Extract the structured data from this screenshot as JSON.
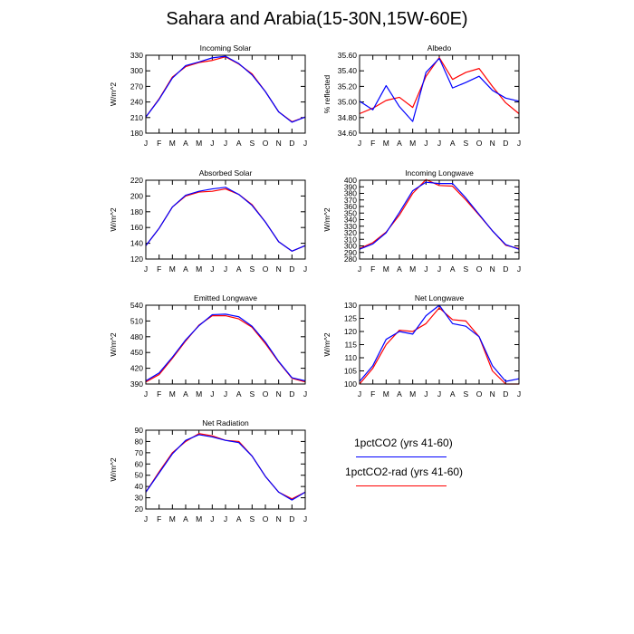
{
  "title": "Sahara and Arabia(15-30N,15W-60E)",
  "month_labels": [
    "J",
    "F",
    "M",
    "A",
    "M",
    "J",
    "J",
    "A",
    "S",
    "O",
    "N",
    "D",
    "J"
  ],
  "colors": {
    "blue": "#0000ff",
    "red": "#ff0000"
  },
  "legend": [
    {
      "label": "1pctCO2 (yrs 41-60)",
      "color": "#0000ff"
    },
    {
      "label": "1pctCO2-rad (yrs 41-60)",
      "color": "#ff0000"
    }
  ],
  "chart_data": [
    {
      "type": "line",
      "title": "Incoming Solar",
      "ylabel": "W/m^2",
      "ylim": [
        180,
        330
      ],
      "yticks": [
        180,
        210,
        240,
        270,
        300,
        330
      ],
      "ytick_labels": [
        "180",
        "210",
        "240",
        "270",
        "300",
        "330"
      ],
      "categories": [
        "J",
        "F",
        "M",
        "A",
        "M",
        "J",
        "J",
        "A",
        "S",
        "O",
        "N",
        "D",
        "J"
      ],
      "series": [
        {
          "name": "1pctCO2 (yrs 41-60)",
          "color": "#0000ff",
          "values": [
            211,
            245,
            286,
            310,
            317,
            325,
            328,
            314,
            292,
            260,
            221,
            201,
            211
          ]
        },
        {
          "name": "1pctCO2-rad (yrs 41-60)",
          "color": "#ff0000",
          "values": [
            211,
            246,
            288,
            308,
            316,
            320,
            327,
            313,
            294,
            260,
            221,
            202,
            211
          ]
        }
      ]
    },
    {
      "type": "line",
      "title": "Albedo",
      "ylabel": "% reflected",
      "ylim": [
        34.6,
        35.6
      ],
      "yticks": [
        34.6,
        34.8,
        35.0,
        35.2,
        35.4,
        35.6
      ],
      "ytick_labels": [
        "34.60",
        "34.80",
        "35.00",
        "35.20",
        "35.40",
        "35.60"
      ],
      "categories": [
        "J",
        "F",
        "M",
        "A",
        "M",
        "J",
        "J",
        "A",
        "S",
        "O",
        "N",
        "D",
        "J"
      ],
      "series": [
        {
          "name": "1pctCO2 (yrs 41-60)",
          "color": "#0000ff",
          "values": [
            35.01,
            34.9,
            35.21,
            34.94,
            34.75,
            35.38,
            35.56,
            35.18,
            35.25,
            35.33,
            35.15,
            35.05,
            35.01
          ]
        },
        {
          "name": "1pctCO2-rad (yrs 41-60)",
          "color": "#ff0000",
          "values": [
            34.85,
            34.92,
            35.02,
            35.06,
            34.93,
            35.33,
            35.57,
            35.29,
            35.38,
            35.43,
            35.2,
            34.99,
            34.85
          ]
        }
      ]
    },
    {
      "type": "line",
      "title": "Absorbed Solar",
      "ylabel": "W/m^2",
      "ylim": [
        120,
        220
      ],
      "yticks": [
        120,
        140,
        160,
        180,
        200,
        220
      ],
      "ytick_labels": [
        "120",
        "140",
        "160",
        "180",
        "200",
        "220"
      ],
      "categories": [
        "J",
        "F",
        "M",
        "A",
        "M",
        "J",
        "J",
        "A",
        "S",
        "O",
        "N",
        "D",
        "J"
      ],
      "series": [
        {
          "name": "1pctCO2 (yrs 41-60)",
          "color": "#0000ff",
          "values": [
            137,
            159,
            186,
            201,
            206,
            209,
            211,
            202,
            188,
            167,
            142,
            130,
            137
          ]
        },
        {
          "name": "1pctCO2-rad (yrs 41-60)",
          "color": "#ff0000",
          "values": [
            137,
            159,
            186,
            200,
            205,
            206,
            209,
            202,
            189,
            167,
            142,
            130,
            137
          ]
        }
      ]
    },
    {
      "type": "line",
      "title": "Incoming Longwave",
      "ylabel": "W/m^2",
      "ylim": [
        280,
        400
      ],
      "yticks": [
        280,
        290,
        300,
        310,
        320,
        330,
        340,
        350,
        360,
        370,
        380,
        390,
        400
      ],
      "ytick_labels": [
        "280",
        "290",
        "300",
        "310",
        "320",
        "330",
        "340",
        "350",
        "360",
        "370",
        "380",
        "390",
        "400"
      ],
      "categories": [
        "J",
        "F",
        "M",
        "A",
        "M",
        "J",
        "J",
        "A",
        "S",
        "O",
        "N",
        "D",
        "J"
      ],
      "series": [
        {
          "name": "1pctCO2 (yrs 41-60)",
          "color": "#0000ff",
          "values": [
            295,
            303,
            320,
            351,
            384,
            397,
            395,
            395,
            373,
            348,
            323,
            302,
            295
          ]
        },
        {
          "name": "1pctCO2-rad (yrs 41-60)",
          "color": "#ff0000",
          "values": [
            296,
            305,
            321,
            347,
            380,
            401,
            392,
            391,
            370,
            347,
            323,
            301,
            296
          ]
        }
      ]
    },
    {
      "type": "line",
      "title": "Emitted Longwave",
      "ylabel": "W/m^2",
      "ylim": [
        390,
        540
      ],
      "yticks": [
        390,
        420,
        450,
        480,
        510,
        540
      ],
      "ytick_labels": [
        "390",
        "420",
        "450",
        "480",
        "510",
        "540"
      ],
      "categories": [
        "J",
        "F",
        "M",
        "A",
        "M",
        "J",
        "J",
        "A",
        "S",
        "O",
        "N",
        "D",
        "J"
      ],
      "series": [
        {
          "name": "1pctCO2 (yrs 41-60)",
          "color": "#0000ff",
          "values": [
            396,
            411,
            441,
            474,
            501,
            522,
            523,
            518,
            500,
            470,
            433,
            402,
            396
          ]
        },
        {
          "name": "1pctCO2-rad (yrs 41-60)",
          "color": "#ff0000",
          "values": [
            394,
            408,
            439,
            472,
            502,
            520,
            520,
            514,
            498,
            467,
            432,
            401,
            394
          ]
        }
      ]
    },
    {
      "type": "line",
      "title": "Net Longwave",
      "ylabel": "W/m^2",
      "ylim": [
        100,
        130
      ],
      "yticks": [
        100,
        105,
        110,
        115,
        120,
        125,
        130
      ],
      "ytick_labels": [
        "100",
        "105",
        "110",
        "115",
        "120",
        "125",
        "130"
      ],
      "categories": [
        "J",
        "F",
        "M",
        "A",
        "M",
        "J",
        "J",
        "A",
        "S",
        "O",
        "N",
        "D",
        "J"
      ],
      "series": [
        {
          "name": "1pctCO2 (yrs 41-60)",
          "color": "#0000ff",
          "values": [
            101,
            107,
            117,
            120,
            119,
            126,
            130,
            123,
            122,
            118,
            107,
            101,
            102
          ]
        },
        {
          "name": "1pctCO2-rad (yrs 41-60)",
          "color": "#ff0000",
          "values": [
            100,
            106,
            115,
            120.5,
            120,
            123,
            129,
            124.5,
            124,
            118,
            105,
            100,
            100
          ]
        }
      ]
    },
    {
      "type": "line",
      "title": "Net Radiation",
      "ylabel": "W/m^2",
      "ylim": [
        20,
        90
      ],
      "yticks": [
        20,
        30,
        40,
        50,
        60,
        70,
        80,
        90
      ],
      "ytick_labels": [
        "20",
        "30",
        "40",
        "50",
        "60",
        "70",
        "80",
        "90"
      ],
      "categories": [
        "J",
        "F",
        "M",
        "A",
        "M",
        "J",
        "J",
        "A",
        "S",
        "O",
        "N",
        "D",
        "J"
      ],
      "series": [
        {
          "name": "1pctCO2 (yrs 41-60)",
          "color": "#0000ff",
          "values": [
            35,
            52,
            69,
            81,
            86,
            84,
            81,
            79,
            67,
            49,
            35,
            28,
            35
          ]
        },
        {
          "name": "1pctCO2-rad (yrs 41-60)",
          "color": "#ff0000",
          "values": [
            35,
            53,
            70,
            80,
            87,
            85,
            81,
            80,
            67,
            49,
            35,
            29,
            35
          ]
        }
      ]
    }
  ]
}
